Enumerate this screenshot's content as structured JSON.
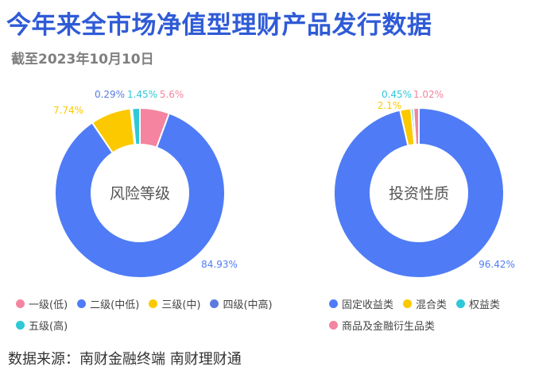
{
  "header": {
    "title": "今年来全市场净值型理财产品发行数据",
    "subtitle": "截至2023年10月10日"
  },
  "footer": {
    "source": "数据来源：南财金融终端 南财理财通"
  },
  "chart_data": [
    {
      "type": "pie",
      "variant": "donut",
      "center_label": "风险等级",
      "slices": [
        {
          "name": "一级(低)",
          "label": "5.6%",
          "value": 5.6,
          "color": "#f4849f"
        },
        {
          "name": "二级(中低)",
          "label": "84.93%",
          "value": 84.93,
          "color": "#4f7cf6"
        },
        {
          "name": "三级(中)",
          "label": "7.74%",
          "value": 7.74,
          "color": "#fcc900"
        },
        {
          "name": "四级(中高)",
          "label": "0.29%",
          "value": 0.29,
          "color": "#5b7be0"
        },
        {
          "name": "五级(高)",
          "label": "1.45%",
          "value": 1.45,
          "color": "#2ec8d8"
        }
      ],
      "legend_position": "bottom"
    },
    {
      "type": "pie",
      "variant": "donut",
      "center_label": "投资性质",
      "slices": [
        {
          "name": "固定收益类",
          "label": "96.42%",
          "value": 96.42,
          "color": "#4f7cf6"
        },
        {
          "name": "混合类",
          "label": "2.1%",
          "value": 2.1,
          "color": "#fcc900"
        },
        {
          "name": "权益类",
          "label": "0.45%",
          "value": 0.45,
          "color": "#2ec8d8"
        },
        {
          "name": "商品及金融衍生品类",
          "label": "1.02%",
          "value": 1.02,
          "color": "#f4849f"
        }
      ],
      "legend_position": "bottom"
    }
  ]
}
